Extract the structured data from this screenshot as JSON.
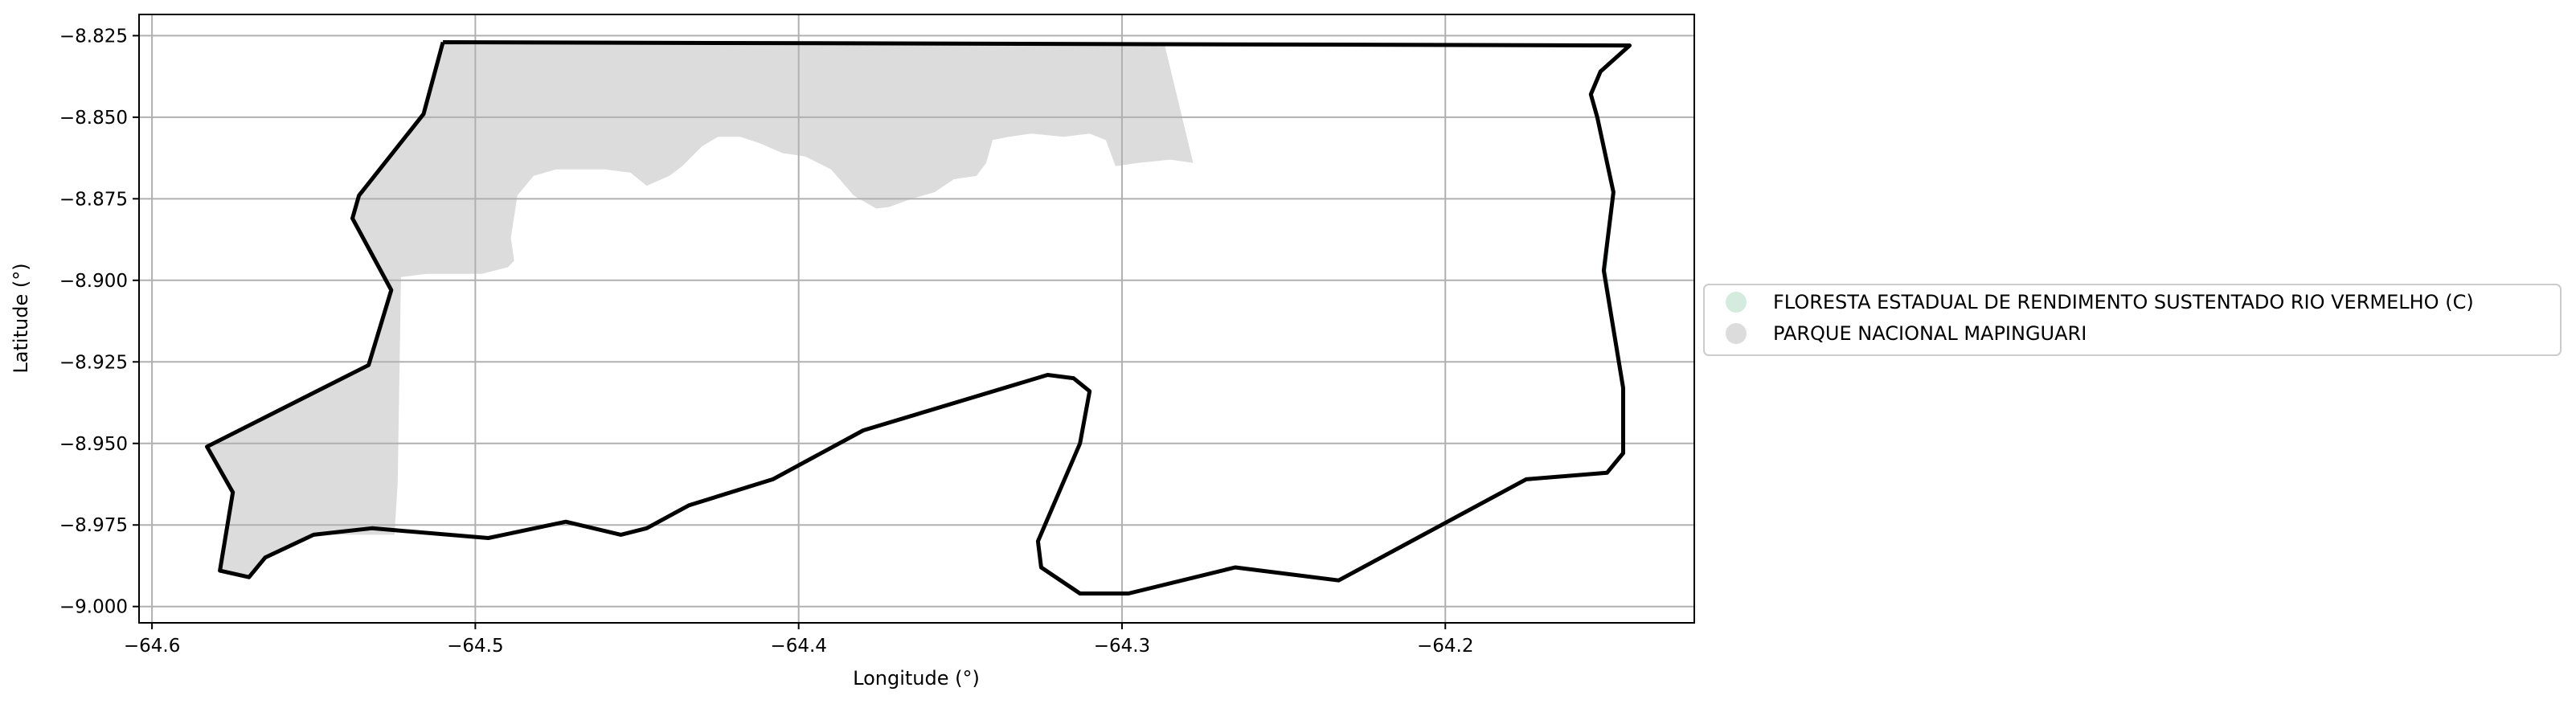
{
  "chart_data": {
    "type": "map",
    "xlabel": "Longitude (°)",
    "ylabel": "Latitude (°)",
    "xlim": [
      -64.604,
      -64.123
    ],
    "ylim": [
      -9.005,
      -8.8185
    ],
    "xticks": [
      -64.6,
      -64.5,
      -64.4,
      -64.3,
      -64.2
    ],
    "xtick_labels": [
      "−64.6",
      "−64.5",
      "−64.4",
      "−64.3",
      "−64.2"
    ],
    "yticks": [
      -8.825,
      -8.85,
      -8.875,
      -8.9,
      -8.925,
      -8.95,
      -8.975,
      -9.0
    ],
    "ytick_labels": [
      "−8.825",
      "−8.850",
      "−8.875",
      "−8.900",
      "−8.925",
      "−8.950",
      "−8.975",
      "−9.000"
    ],
    "grid": true,
    "legend_placement": "outside-right",
    "legend": [
      {
        "label": "FLORESTA ESTADUAL DE RENDIMENTO SUSTENTADO RIO VERMELHO (C)",
        "color": "#d3ecdf"
      },
      {
        "label": "PARQUE NACIONAL MAPINGUARI",
        "color": "#dcdcdc"
      }
    ],
    "areas": [
      {
        "name": "PARQUE NACIONAL MAPINGUARI",
        "color": "#dcdcdc",
        "coords": [
          [
            -64.51,
            -8.827
          ],
          [
            -64.287,
            -8.827
          ],
          [
            -64.278,
            -8.864
          ],
          [
            -64.285,
            -8.863
          ],
          [
            -64.295,
            -8.864
          ],
          [
            -64.302,
            -8.865
          ],
          [
            -64.305,
            -8.857
          ],
          [
            -64.31,
            -8.855
          ],
          [
            -64.318,
            -8.856
          ],
          [
            -64.328,
            -8.855
          ],
          [
            -64.335,
            -8.856
          ],
          [
            -64.34,
            -8.857
          ],
          [
            -64.342,
            -8.864
          ],
          [
            -64.345,
            -8.868
          ],
          [
            -64.352,
            -8.869
          ],
          [
            -64.358,
            -8.873
          ],
          [
            -64.365,
            -8.875
          ],
          [
            -64.372,
            -8.8775
          ],
          [
            -64.376,
            -8.878
          ],
          [
            -64.383,
            -8.874
          ],
          [
            -64.39,
            -8.866
          ],
          [
            -64.398,
            -8.862
          ],
          [
            -64.405,
            -8.861
          ],
          [
            -64.412,
            -8.858
          ],
          [
            -64.418,
            -8.856
          ],
          [
            -64.425,
            -8.856
          ],
          [
            -64.43,
            -8.859
          ],
          [
            -64.436,
            -8.865
          ],
          [
            -64.44,
            -8.868
          ],
          [
            -64.447,
            -8.871
          ],
          [
            -64.452,
            -8.867
          ],
          [
            -64.46,
            -8.866
          ],
          [
            -64.475,
            -8.866
          ],
          [
            -64.482,
            -8.868
          ],
          [
            -64.487,
            -8.874
          ],
          [
            -64.489,
            -8.887
          ],
          [
            -64.488,
            -8.894
          ],
          [
            -64.49,
            -8.896
          ],
          [
            -64.498,
            -8.898
          ],
          [
            -64.515,
            -8.898
          ],
          [
            -64.523,
            -8.899
          ],
          [
            -64.524,
            -8.962
          ],
          [
            -64.525,
            -8.978
          ],
          [
            -64.55,
            -8.978
          ],
          [
            -64.565,
            -8.985
          ],
          [
            -64.57,
            -8.991
          ],
          [
            -64.579,
            -8.989
          ],
          [
            -64.575,
            -8.965
          ],
          [
            -64.583,
            -8.951
          ],
          [
            -64.533,
            -8.926
          ],
          [
            -64.526,
            -8.903
          ],
          [
            -64.538,
            -8.881
          ],
          [
            -64.536,
            -8.874
          ],
          [
            -64.516,
            -8.849
          ]
        ]
      },
      {
        "name": "FLORESTA ESTADUAL DE RENDIMENTO SUSTENTADO RIO VERMELHO (C)",
        "color": "#d3ecdf",
        "coords": [
          [
            -64.148,
            -8.873
          ],
          [
            -64.151,
            -8.897
          ],
          [
            -64.145,
            -8.933
          ],
          [
            -64.15,
            -8.897
          ]
        ]
      }
    ],
    "boundary": [
      [
        -64.51,
        -8.827
      ],
      [
        -64.143,
        -8.828
      ],
      [
        -64.152,
        -8.836
      ],
      [
        -64.155,
        -8.843
      ],
      [
        -64.153,
        -8.85
      ],
      [
        -64.148,
        -8.873
      ],
      [
        -64.151,
        -8.897
      ],
      [
        -64.145,
        -8.933
      ],
      [
        -64.145,
        -8.953
      ],
      [
        -64.15,
        -8.959
      ],
      [
        -64.175,
        -8.961
      ],
      [
        -64.233,
        -8.992
      ],
      [
        -64.265,
        -8.988
      ],
      [
        -64.298,
        -8.996
      ],
      [
        -64.313,
        -8.996
      ],
      [
        -64.325,
        -8.988
      ],
      [
        -64.326,
        -8.98
      ],
      [
        -64.313,
        -8.95
      ],
      [
        -64.31,
        -8.934
      ],
      [
        -64.315,
        -8.93
      ],
      [
        -64.323,
        -8.929
      ],
      [
        -64.38,
        -8.946
      ],
      [
        -64.408,
        -8.961
      ],
      [
        -64.434,
        -8.969
      ],
      [
        -64.447,
        -8.976
      ],
      [
        -64.455,
        -8.978
      ],
      [
        -64.472,
        -8.974
      ],
      [
        -64.496,
        -8.979
      ],
      [
        -64.532,
        -8.976
      ],
      [
        -64.55,
        -8.978
      ],
      [
        -64.565,
        -8.985
      ],
      [
        -64.57,
        -8.991
      ],
      [
        -64.579,
        -8.989
      ],
      [
        -64.575,
        -8.965
      ],
      [
        -64.583,
        -8.951
      ],
      [
        -64.533,
        -8.926
      ],
      [
        -64.526,
        -8.903
      ],
      [
        -64.538,
        -8.881
      ],
      [
        -64.536,
        -8.874
      ],
      [
        -64.516,
        -8.849
      ],
      [
        -64.51,
        -8.827
      ]
    ]
  }
}
